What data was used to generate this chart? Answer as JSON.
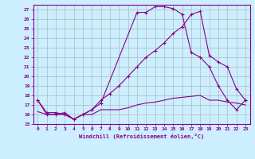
{
  "xlabel": "Windchill (Refroidissement éolien,°C)",
  "bg_color": "#cceeff",
  "grid_color": "#aabbbb",
  "line_color": "#880088",
  "xlim": [
    -0.5,
    23.5
  ],
  "ylim": [
    15,
    27.5
  ],
  "yticks": [
    15,
    16,
    17,
    18,
    19,
    20,
    21,
    22,
    23,
    24,
    25,
    26,
    27
  ],
  "xticks": [
    0,
    1,
    2,
    3,
    4,
    5,
    6,
    7,
    8,
    9,
    10,
    11,
    12,
    13,
    14,
    15,
    16,
    17,
    18,
    19,
    20,
    21,
    22,
    23
  ],
  "line1_x": [
    0,
    1,
    2,
    3,
    4,
    5,
    6,
    7,
    11,
    12,
    13,
    14,
    15,
    16,
    17,
    18,
    19,
    20,
    21,
    22,
    23
  ],
  "line1_y": [
    17.5,
    16.0,
    16.0,
    16.2,
    15.5,
    16.0,
    16.5,
    17.2,
    26.7,
    26.7,
    27.3,
    27.3,
    27.1,
    26.5,
    22.5,
    22.0,
    21.0,
    19.0,
    17.5,
    16.5,
    17.5
  ],
  "line2_x": [
    0,
    1,
    2,
    3,
    4,
    5,
    6,
    7,
    8,
    9,
    10,
    11,
    12,
    13,
    14,
    15,
    16,
    17,
    18,
    19,
    20,
    21,
    22,
    23
  ],
  "line2_y": [
    17.5,
    16.2,
    16.2,
    16.0,
    15.5,
    16.0,
    16.5,
    17.5,
    18.2,
    19.0,
    20.0,
    21.0,
    22.0,
    22.7,
    23.5,
    24.5,
    25.2,
    26.5,
    26.8,
    22.2,
    21.5,
    21.0,
    18.7,
    17.5
  ],
  "line3_x": [
    0,
    1,
    2,
    3,
    4,
    5,
    6,
    7,
    8,
    9,
    10,
    11,
    12,
    13,
    14,
    15,
    16,
    17,
    18,
    19,
    20,
    21,
    22,
    23
  ],
  "line3_y": [
    16.3,
    16.0,
    16.0,
    16.0,
    15.5,
    16.0,
    16.0,
    16.5,
    16.5,
    16.5,
    16.7,
    17.0,
    17.2,
    17.3,
    17.5,
    17.7,
    17.8,
    17.9,
    18.0,
    17.5,
    17.5,
    17.3,
    17.2,
    17.0
  ]
}
